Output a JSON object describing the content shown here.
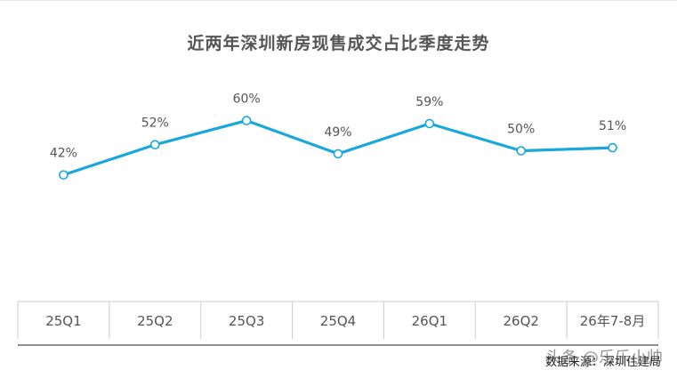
{
  "colors": {
    "line": "#1aa8dc",
    "marker_fill": "#ffffff",
    "axis": "#cccccc",
    "text": "#555555"
  },
  "chart_data": {
    "type": "line",
    "title": "近两年深圳新房现售成交占比季度走势",
    "categories": [
      "25Q1",
      "25Q2",
      "25Q3",
      "25Q4",
      "26Q1",
      "26Q2",
      "26年7-8月"
    ],
    "series": [
      {
        "values": [
          42,
          52,
          60,
          49,
          59,
          50,
          51
        ]
      }
    ],
    "data_labels": [
      "42%",
      "52%",
      "60%",
      "49%",
      "59%",
      "50%",
      "51%"
    ],
    "ylim": [
      0,
      100
    ],
    "grid": false,
    "legend": "none"
  },
  "footer": {
    "source": "数据来源：深圳住建局",
    "watermark": "头条 @乐乐小帅"
  }
}
